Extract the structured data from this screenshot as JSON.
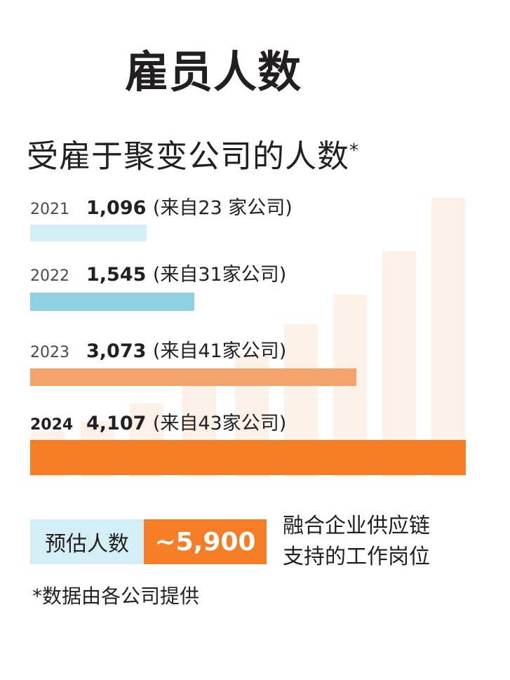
{
  "header": {
    "title": "雇员人数"
  },
  "subtitle": {
    "text": "受雇于聚变公司的人数",
    "mark": "*"
  },
  "chart_data": {
    "type": "bar",
    "orientation": "horizontal",
    "title": "受雇于聚变公司的人数*",
    "categories": [
      "2021",
      "2022",
      "2023",
      "2024"
    ],
    "values": [
      1096,
      1545,
      3073,
      4107
    ],
    "value_labels": [
      "1,096",
      "1,545",
      "3,073",
      "4,107"
    ],
    "company_notes": [
      "(来自23 家公司)",
      "(来自31家公司)",
      "(来自41家公司)",
      "(来自43家公司)"
    ],
    "company_counts": [
      23,
      31,
      41,
      43
    ],
    "colors": [
      "#d4eef7",
      "#8fd0e4",
      "#f4a46a",
      "#f47d26"
    ],
    "grid": false
  },
  "estimate": {
    "label": "预估人数",
    "value": "~5,900"
  },
  "side_text": {
    "line1": "融合企业供应链",
    "line2": "支持的工作岗位"
  },
  "footnote": "*数据由各公司提供",
  "colors": {
    "accent_orange": "#f47d26",
    "light_blue": "#d4eef5",
    "background_bars": "#fdf1e7"
  }
}
